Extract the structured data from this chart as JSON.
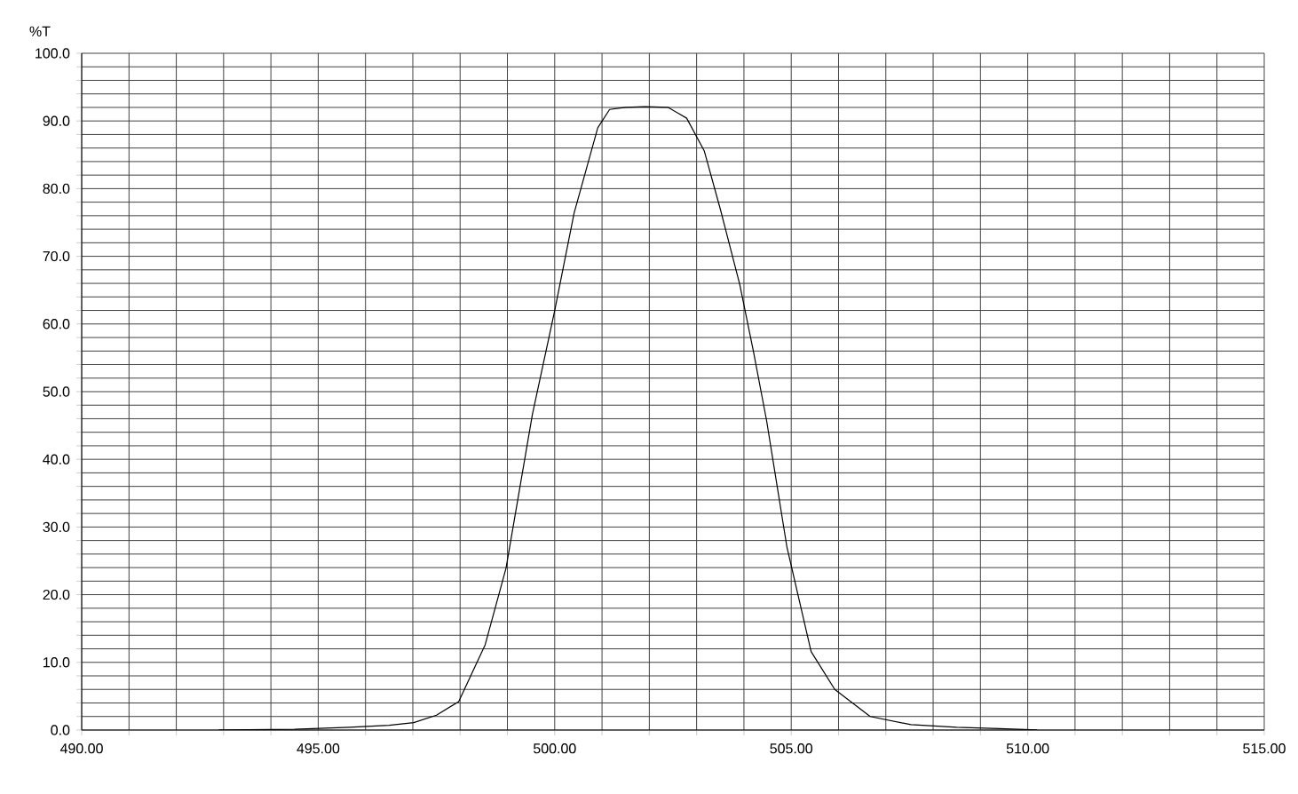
{
  "chart_data": {
    "type": "line",
    "ylabel": "%T",
    "x": [
      492.9,
      494.5,
      495.66,
      496.5,
      497.02,
      497.5,
      497.97,
      498.53,
      498.97,
      499.53,
      500.0,
      500.41,
      500.91,
      501.16,
      501.5,
      501.91,
      502.4,
      502.79,
      503.16,
      503.5,
      503.91,
      504.2,
      504.48,
      504.91,
      505.42,
      505.92,
      506.67,
      507.53,
      508.5,
      509.4,
      510.2
    ],
    "series": [
      {
        "color": "#000000",
        "values": [
          0.0,
          0.1,
          0.4,
          0.7,
          1.1,
          2.2,
          4.2,
          12.6,
          23.9,
          46.7,
          62.0,
          76.4,
          89.0,
          91.7,
          92.0,
          92.1,
          92.0,
          90.4,
          85.6,
          77.0,
          65.9,
          56.0,
          45.7,
          27.0,
          11.6,
          6.0,
          2.0,
          0.8,
          0.4,
          0.2,
          0.0
        ]
      }
    ],
    "xlim": [
      490,
      515
    ],
    "ylim": [
      0,
      100
    ],
    "xticks": [
      {
        "value": 490,
        "label": "490.00"
      },
      {
        "value": 491,
        "label": null
      },
      {
        "value": 492,
        "label": null
      },
      {
        "value": 493,
        "label": null
      },
      {
        "value": 494,
        "label": null
      },
      {
        "value": 495,
        "label": "495.00"
      },
      {
        "value": 496,
        "label": null
      },
      {
        "value": 497,
        "label": null
      },
      {
        "value": 498,
        "label": null
      },
      {
        "value": 499,
        "label": null
      },
      {
        "value": 500,
        "label": "500.00"
      },
      {
        "value": 501,
        "label": null
      },
      {
        "value": 502,
        "label": null
      },
      {
        "value": 503,
        "label": null
      },
      {
        "value": 504,
        "label": null
      },
      {
        "value": 505,
        "label": "505.00"
      },
      {
        "value": 506,
        "label": null
      },
      {
        "value": 507,
        "label": null
      },
      {
        "value": 508,
        "label": null
      },
      {
        "value": 509,
        "label": null
      },
      {
        "value": 510,
        "label": "510.00"
      },
      {
        "value": 511,
        "label": null
      },
      {
        "value": 512,
        "label": null
      },
      {
        "value": 513,
        "label": null
      },
      {
        "value": 514,
        "label": null
      },
      {
        "value": 515,
        "label": "515.00"
      }
    ],
    "yticks": [
      {
        "value": 0,
        "label": "0.0"
      },
      {
        "value": 2,
        "label": null
      },
      {
        "value": 4,
        "label": null
      },
      {
        "value": 6,
        "label": null
      },
      {
        "value": 8,
        "label": null
      },
      {
        "value": 10,
        "label": "10.0"
      },
      {
        "value": 12,
        "label": null
      },
      {
        "value": 14,
        "label": null
      },
      {
        "value": 16,
        "label": null
      },
      {
        "value": 18,
        "label": null
      },
      {
        "value": 20,
        "label": "20.0"
      },
      {
        "value": 22,
        "label": null
      },
      {
        "value": 24,
        "label": null
      },
      {
        "value": 26,
        "label": null
      },
      {
        "value": 28,
        "label": null
      },
      {
        "value": 30,
        "label": "30.0"
      },
      {
        "value": 32,
        "label": null
      },
      {
        "value": 34,
        "label": null
      },
      {
        "value": 36,
        "label": null
      },
      {
        "value": 38,
        "label": null
      },
      {
        "value": 40,
        "label": "40.0"
      },
      {
        "value": 42,
        "label": null
      },
      {
        "value": 44,
        "label": null
      },
      {
        "value": 46,
        "label": null
      },
      {
        "value": 48,
        "label": null
      },
      {
        "value": 50,
        "label": "50.0"
      },
      {
        "value": 52,
        "label": null
      },
      {
        "value": 54,
        "label": null
      },
      {
        "value": 56,
        "label": null
      },
      {
        "value": 58,
        "label": null
      },
      {
        "value": 60,
        "label": "60.0"
      },
      {
        "value": 62,
        "label": null
      },
      {
        "value": 64,
        "label": null
      },
      {
        "value": 66,
        "label": null
      },
      {
        "value": 68,
        "label": null
      },
      {
        "value": 70,
        "label": "70.0"
      },
      {
        "value": 72,
        "label": null
      },
      {
        "value": 74,
        "label": null
      },
      {
        "value": 76,
        "label": null
      },
      {
        "value": 78,
        "label": null
      },
      {
        "value": 80,
        "label": "80.0"
      },
      {
        "value": 82,
        "label": null
      },
      {
        "value": 84,
        "label": null
      },
      {
        "value": 86,
        "label": null
      },
      {
        "value": 88,
        "label": null
      },
      {
        "value": 90,
        "label": "90.0"
      },
      {
        "value": 92,
        "label": null
      },
      {
        "value": 94,
        "label": null
      },
      {
        "value": 96,
        "label": null
      },
      {
        "value": 98,
        "label": null
      },
      {
        "value": 100,
        "label": "100.0"
      }
    ],
    "grid": true,
    "marker": "none",
    "line_style": "solid"
  }
}
